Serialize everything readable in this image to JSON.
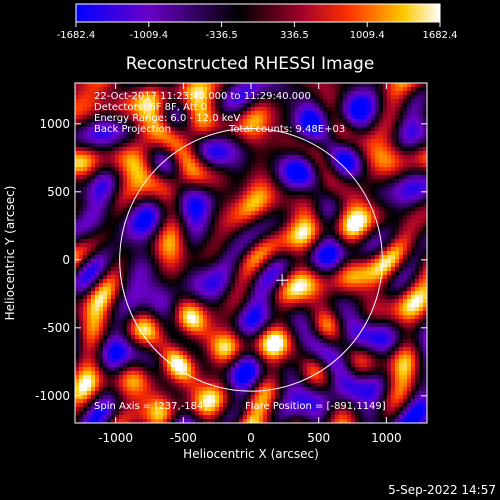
{
  "chart_data": {
    "type": "heatmap",
    "title": "Reconstructed RHESSI Image",
    "xlabel": "Heliocentric X (arcsec)",
    "ylabel": "Heliocentric Y (arcsec)",
    "xlim": [
      -1300,
      1300
    ],
    "ylim": [
      -1200,
      1300
    ],
    "x_ticks": [
      -1000,
      -500,
      0,
      500,
      1000
    ],
    "y_ticks": [
      -1000,
      -500,
      0,
      500,
      1000
    ],
    "x_tick_labels": [
      "-1000",
      "-500",
      "0",
      "500",
      "1000"
    ],
    "y_tick_labels": [
      "-1000",
      "-500",
      "0",
      "500",
      "1000"
    ],
    "colorbar": {
      "range": [
        -1682.4,
        1682.4
      ],
      "ticks": [
        -1682.4,
        -1009.4,
        -336.5,
        336.5,
        1009.4,
        1682.4
      ],
      "tick_labels": [
        "-1682.4",
        "-1009.4",
        "-336.5",
        "336.5",
        "1009.4",
        "1682.4"
      ],
      "colors": [
        "#0000ff",
        "#6a00c8",
        "#000000",
        "#a0002a",
        "#ff3200",
        "#ffc800",
        "#ffffff"
      ]
    },
    "solar_limb_radius_arcsec": 970,
    "marker": {
      "symbol": "+",
      "x": 230,
      "y": -150
    },
    "annotations": {
      "time_range": "22-Oct-2017 11:23:40.000 to 11:29:40.000",
      "detectors": "Detectors: 6F 8F, Att 0",
      "energy": "Energy Range: 6.0 - 12.0 keV",
      "method": "Back Projection",
      "counts": "Total counts: 9.48E+03",
      "spin_axis": "Spin Axis = [237,-184]",
      "flare_position": "Flare Position = [-891,1149]"
    }
  },
  "timestamp": "5-Sep-2022 14:57"
}
